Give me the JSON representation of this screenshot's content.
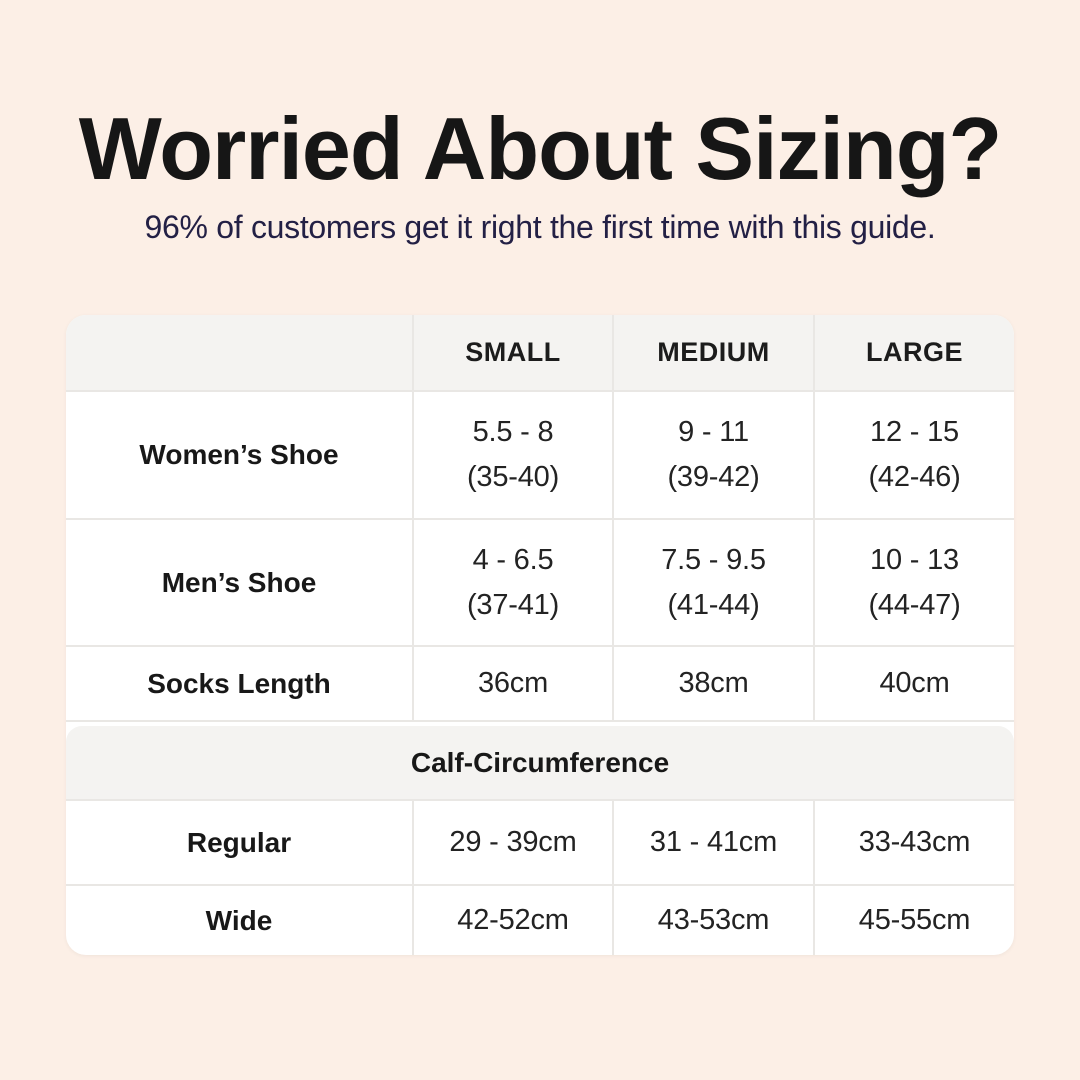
{
  "page": {
    "background": "#fcefe6",
    "colors": {
      "title": "#161616",
      "subtitle": "#232045",
      "table_background": "#ffffff",
      "band_background": "#f4f3f1",
      "divider": "#e9e7e4",
      "table_text": "#232323"
    }
  },
  "header": {
    "title": "Worried About Sizing?",
    "subtitle": "96% of customers get it right the first time with this guide."
  },
  "table": {
    "column_headers": [
      "SMALL",
      "MEDIUM",
      "LARGE"
    ],
    "rows": [
      {
        "label": "Women’s Shoe",
        "cells": [
          [
            "5.5 - 8",
            "(35-40)"
          ],
          [
            "9 - 11",
            "(39-42)"
          ],
          [
            "12 - 15",
            "(42-46)"
          ]
        ]
      },
      {
        "label": "Men’s Shoe",
        "cells": [
          [
            "4 - 6.5",
            "(37-41)"
          ],
          [
            "7.5 - 9.5",
            "(41-44)"
          ],
          [
            "10 - 13",
            "(44-47)"
          ]
        ]
      },
      {
        "label": "Socks Length",
        "cells": [
          [
            "36cm"
          ],
          [
            "38cm"
          ],
          [
            "40cm"
          ]
        ]
      }
    ],
    "section_header": "Calf-Circumference",
    "calf_rows": [
      {
        "label": "Regular",
        "cells": [
          [
            "29 - 39cm"
          ],
          [
            "31 - 41cm"
          ],
          [
            "33-43cm"
          ]
        ]
      },
      {
        "label": "Wide",
        "cells": [
          [
            "42-52cm"
          ],
          [
            "43-53cm"
          ],
          [
            "45-55cm"
          ]
        ]
      }
    ]
  },
  "chart_data": {
    "type": "table",
    "title": "Worried About Sizing?",
    "subtitle": "96% of customers get it right the first time with this guide.",
    "columns": [
      "",
      "SMALL",
      "MEDIUM",
      "LARGE"
    ],
    "rows": [
      [
        "Women’s Shoe",
        "5.5 - 8 (35-40)",
        "9 - 11 (39-42)",
        "12 - 15 (42-46)"
      ],
      [
        "Men’s Shoe",
        "4 - 6.5 (37-41)",
        "7.5 - 9.5 (41-44)",
        "10 - 13 (44-47)"
      ],
      [
        "Socks Length",
        "36cm",
        "38cm",
        "40cm"
      ],
      [
        "Calf-Circumference",
        "",
        "",
        ""
      ],
      [
        "Regular",
        "29 - 39cm",
        "31 - 41cm",
        "33-43cm"
      ],
      [
        "Wide",
        "42-52cm",
        "43-53cm",
        "45-55cm"
      ]
    ]
  }
}
